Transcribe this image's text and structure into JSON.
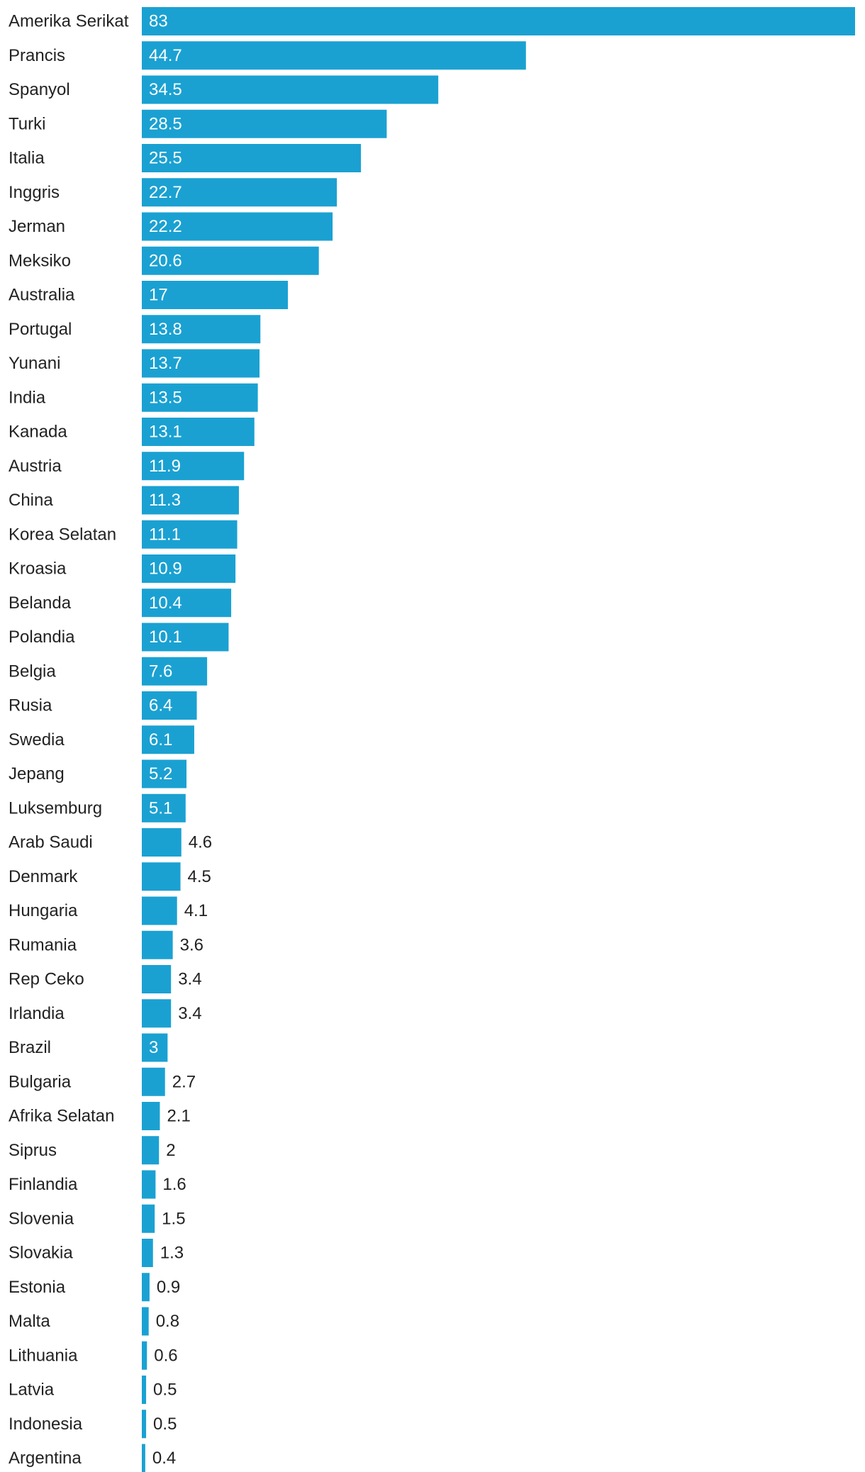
{
  "chart_data": {
    "type": "bar",
    "orientation": "horizontal",
    "title": "",
    "xlabel": "",
    "ylabel": "",
    "xlim": [
      0,
      83
    ],
    "grid": false,
    "legend": "none",
    "bar_color": "#1aa1d2",
    "label_inside_color": "#ffffff",
    "label_outside_color": "#222222",
    "categories": [
      "Amerika Serikat",
      "Prancis",
      "Spanyol",
      "Turki",
      "Italia",
      "Inggris",
      "Jerman",
      "Meksiko",
      "Australia",
      "Portugal",
      "Yunani",
      "India",
      "Kanada",
      "Austria",
      "China",
      "Korea Selatan",
      "Kroasia",
      "Belanda",
      "Polandia",
      "Belgia",
      "Rusia",
      "Swedia",
      "Jepang",
      "Luksemburg",
      "Arab Saudi",
      "Denmark",
      "Hungaria",
      "Rumania",
      "Rep Ceko",
      "Irlandia",
      "Brazil",
      "Bulgaria",
      "Afrika Selatan",
      "Siprus",
      "Finlandia",
      "Slovenia",
      "Slovakia",
      "Estonia",
      "Malta",
      "Lithuania",
      "Latvia",
      "Indonesia",
      "Argentina"
    ],
    "values": [
      83,
      44.7,
      34.5,
      28.5,
      25.5,
      22.7,
      22.2,
      20.6,
      17,
      13.8,
      13.7,
      13.5,
      13.1,
      11.9,
      11.3,
      11.1,
      10.9,
      10.4,
      10.1,
      7.6,
      6.4,
      6.1,
      5.2,
      5.1,
      4.6,
      4.5,
      4.1,
      3.6,
      3.4,
      3.4,
      3,
      2.7,
      2.1,
      2,
      1.6,
      1.5,
      1.3,
      0.9,
      0.8,
      0.6,
      0.5,
      0.5,
      0.4
    ]
  }
}
